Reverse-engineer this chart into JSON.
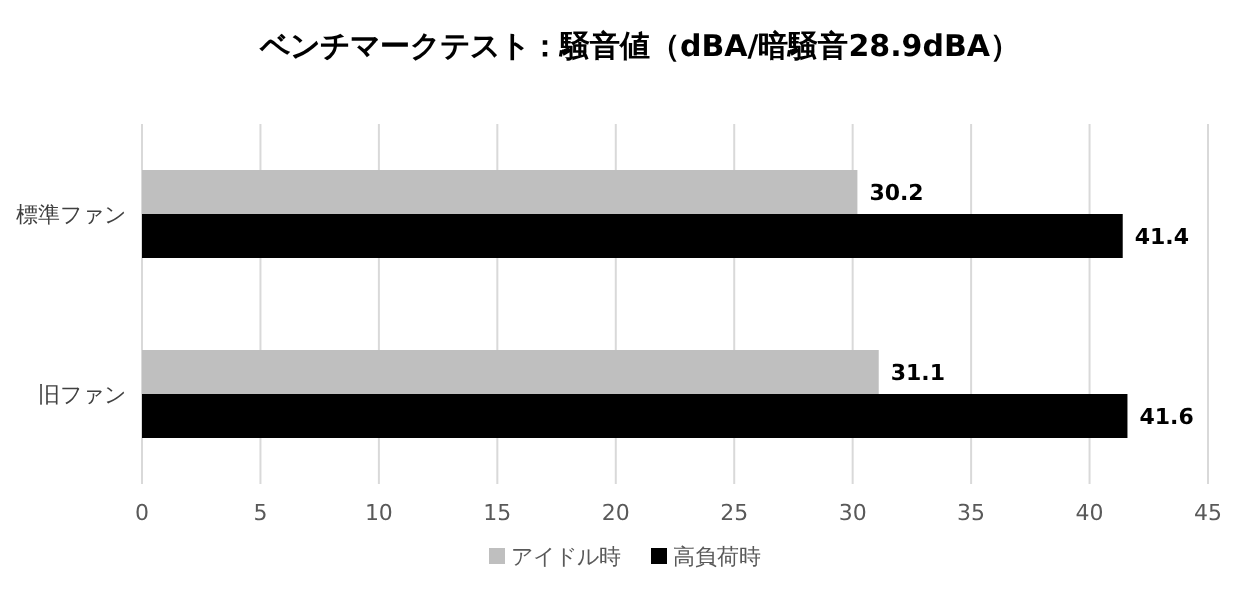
{
  "chart_data": {
    "type": "bar",
    "orientation": "horizontal",
    "title": "ベンチマークテスト：騒音値（dBA/暗騒音28.9dBA）",
    "categories": [
      "標準ファン",
      "旧ファン"
    ],
    "series": [
      {
        "name": "アイドル時",
        "color": "#bfbfbf",
        "values": [
          30.2,
          31.1
        ]
      },
      {
        "name": "高負荷時",
        "color": "#000000",
        "values": [
          41.4,
          41.6
        ]
      }
    ],
    "xlim": [
      0,
      45
    ],
    "xticks": [
      0,
      5,
      10,
      15,
      20,
      25,
      30,
      35,
      40,
      45
    ],
    "grid": "x",
    "legend": "bottom",
    "data_labels": true
  }
}
